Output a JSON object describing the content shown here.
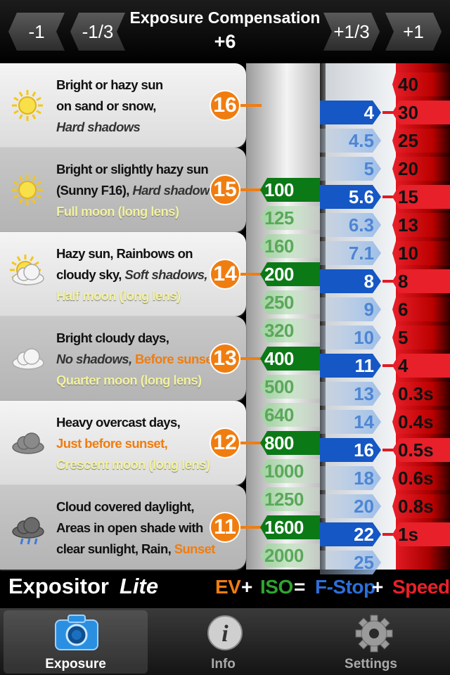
{
  "header": {
    "buttons": [
      "-1",
      "-1/3",
      "+1/3",
      "+1"
    ],
    "title": "Exposure Compensation",
    "value": "+6"
  },
  "rows": [
    {
      "ev": "16",
      "icon": "sun",
      "lines": [
        [
          {
            "text": "Bright or hazy sun"
          }
        ],
        [
          {
            "text": "on sand or snow,"
          }
        ],
        [
          {
            "text": "Hard shadows",
            "style": "italic"
          }
        ]
      ]
    },
    {
      "ev": "15",
      "icon": "sun",
      "lines": [
        [
          {
            "text": "Bright or slightly hazy sun"
          }
        ],
        [
          {
            "text": "(Sunny F16), "
          },
          {
            "text": "Hard shadows,",
            "style": "italic"
          }
        ],
        [
          {
            "text": "Full moon (long lens)",
            "style": "yellow"
          }
        ]
      ]
    },
    {
      "ev": "14",
      "icon": "sun-cloud",
      "lines": [
        [
          {
            "text": "Hazy sun, Rainbows on"
          }
        ],
        [
          {
            "text": "cloudy sky, "
          },
          {
            "text": "Soft shadows,",
            "style": "italic"
          }
        ],
        [
          {
            "text": "Half moon (long lens)",
            "style": "yellow"
          }
        ]
      ]
    },
    {
      "ev": "13",
      "icon": "cloud",
      "lines": [
        [
          {
            "text": "Bright cloudy days,"
          }
        ],
        [
          {
            "text": "No shadows, ",
            "style": "italic"
          },
          {
            "text": "Before sunset,",
            "style": "orange"
          }
        ],
        [
          {
            "text": "Quarter moon (long lens)",
            "style": "yellow"
          }
        ]
      ]
    },
    {
      "ev": "12",
      "icon": "dark-cloud",
      "lines": [
        [
          {
            "text": "Heavy overcast days,"
          }
        ],
        [
          {
            "text": "Just before sunset,",
            "style": "orange"
          }
        ],
        [
          {
            "text": "Crescent moon (long lens)",
            "style": "yellow"
          }
        ]
      ]
    },
    {
      "ev": "11",
      "icon": "rain-cloud",
      "lines": [
        [
          {
            "text": "Cloud covered daylight,"
          }
        ],
        [
          {
            "text": "Areas in open shade with"
          }
        ],
        [
          {
            "text": "clear sunlight, Rain, "
          },
          {
            "text": "Sunset",
            "style": "orange"
          }
        ]
      ]
    }
  ],
  "iso": [
    {
      "label": "100",
      "highlight": true
    },
    {
      "label": "125"
    },
    {
      "label": "160"
    },
    {
      "label": "200",
      "highlight": true
    },
    {
      "label": "250"
    },
    {
      "label": "320"
    },
    {
      "label": "400",
      "highlight": true
    },
    {
      "label": "500"
    },
    {
      "label": "640"
    },
    {
      "label": "800",
      "highlight": true
    },
    {
      "label": "1000"
    },
    {
      "label": "1250"
    },
    {
      "label": "1600",
      "highlight": true
    },
    {
      "label": "2000"
    }
  ],
  "fstops": [
    {
      "label": "4",
      "highlight": true
    },
    {
      "label": "4.5"
    },
    {
      "label": "5"
    },
    {
      "label": "5.6",
      "highlight": true
    },
    {
      "label": "6.3"
    },
    {
      "label": "7.1"
    },
    {
      "label": "8",
      "highlight": true
    },
    {
      "label": "9"
    },
    {
      "label": "10"
    },
    {
      "label": "11",
      "highlight": true
    },
    {
      "label": "13"
    },
    {
      "label": "14"
    },
    {
      "label": "16",
      "highlight": true
    },
    {
      "label": "18"
    },
    {
      "label": "20"
    },
    {
      "label": "22",
      "highlight": true
    },
    {
      "label": "25"
    }
  ],
  "speeds": [
    {
      "label": "40"
    },
    {
      "label": "30",
      "highlight": true
    },
    {
      "label": "25"
    },
    {
      "label": "20"
    },
    {
      "label": "15",
      "highlight": true
    },
    {
      "label": "13"
    },
    {
      "label": "10"
    },
    {
      "label": "8",
      "highlight": true
    },
    {
      "label": "6"
    },
    {
      "label": "5"
    },
    {
      "label": "4",
      "highlight": true
    },
    {
      "label": "0.3s"
    },
    {
      "label": "0.4s"
    },
    {
      "label": "0.5s",
      "highlight": true
    },
    {
      "label": "0.6s"
    },
    {
      "label": "0.8s"
    },
    {
      "label": "1s",
      "highlight": true
    }
  ],
  "footer": {
    "brand": "Expositor",
    "edition": "Lite",
    "formula": [
      {
        "text": "EV",
        "color": "#f07d10"
      },
      {
        "text": "+",
        "color": "#ffffff"
      },
      {
        "text": "ISO",
        "color": "#2fa52f"
      },
      {
        "text": "=",
        "color": "#ffffff"
      },
      {
        "text": "F-Stop",
        "color": "#2d6fd8"
      },
      {
        "text": "+",
        "color": "#ffffff"
      },
      {
        "text": "Speed",
        "color": "#e8202a"
      }
    ]
  },
  "tabs": [
    {
      "label": "Exposure",
      "active": true
    },
    {
      "label": "Info"
    },
    {
      "label": "Settings"
    }
  ]
}
